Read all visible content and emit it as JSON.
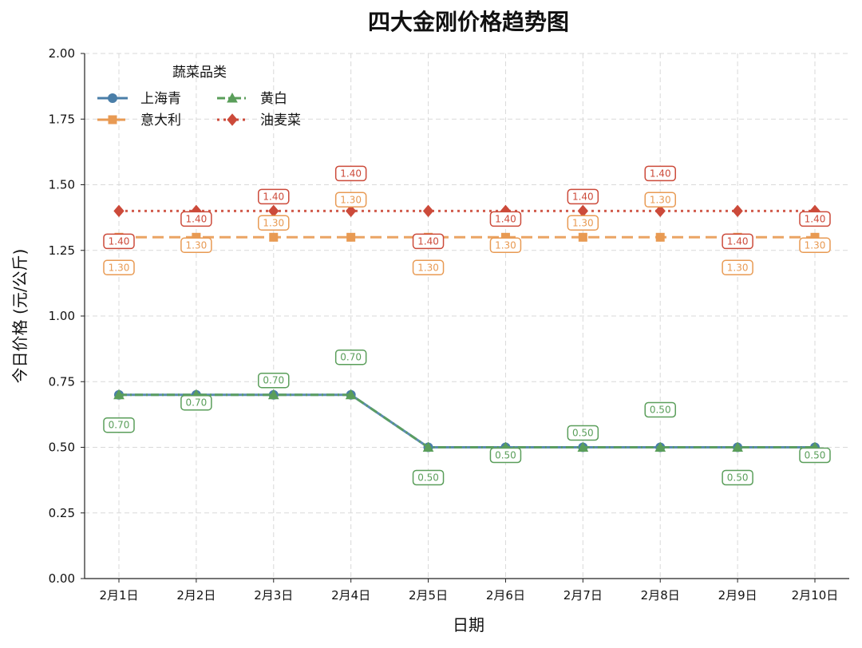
{
  "chart_data": {
    "type": "line",
    "title": "四大金刚价格趋势图",
    "xlabel": "日期",
    "ylabel": "今日价格 (元/公斤)",
    "categories": [
      "2月1日",
      "2月2日",
      "2月3日",
      "2月4日",
      "2月5日",
      "2月6日",
      "2月7日",
      "2月8日",
      "2月9日",
      "2月10日"
    ],
    "y_ticks": [
      "0.00",
      "0.25",
      "0.50",
      "0.75",
      "1.00",
      "1.25",
      "1.50",
      "1.75",
      "2.00"
    ],
    "ylim": [
      0,
      2.0
    ],
    "grid": true,
    "legend": {
      "title": "蔬菜品类",
      "placement": "top-left"
    },
    "series": [
      {
        "name": "上海青",
        "color": "#4a7ea8",
        "marker": "circle",
        "line_style": "solid",
        "values": [
          0.7,
          0.7,
          0.7,
          0.7,
          0.5,
          0.5,
          0.5,
          0.5,
          0.5,
          0.5
        ],
        "labels": [
          "0.70",
          "0.70",
          "0.70",
          "0.70",
          "0.50",
          "0.50",
          "0.50",
          "0.50",
          "0.50",
          "0.50"
        ]
      },
      {
        "name": "意大利",
        "color": "#e89a53",
        "marker": "square",
        "line_style": "dashed",
        "values": [
          1.3,
          1.3,
          1.3,
          1.3,
          1.3,
          1.3,
          1.3,
          1.3,
          1.3,
          1.3
        ],
        "labels": [
          "1.30",
          "1.30",
          "1.30",
          "1.30",
          "1.30",
          "1.30",
          "1.30",
          "1.30",
          "1.30",
          "1.30"
        ]
      },
      {
        "name": "黄白",
        "color": "#5a9e5a",
        "marker": "triangle",
        "line_style": "dashdot",
        "values": [
          0.7,
          0.7,
          0.7,
          0.7,
          0.5,
          0.5,
          0.5,
          0.5,
          0.5,
          0.5
        ],
        "labels": [
          "0.70",
          "0.70",
          "0.70",
          "0.70",
          "0.50",
          "0.50",
          "0.50",
          "0.50",
          "0.50",
          "0.50"
        ]
      },
      {
        "name": "油麦菜",
        "color": "#cc4a3a",
        "marker": "diamond",
        "line_style": "dotted",
        "values": [
          1.4,
          1.4,
          1.4,
          1.4,
          1.4,
          1.4,
          1.4,
          1.4,
          1.4,
          1.4
        ],
        "labels": [
          "1.40",
          "1.40",
          "1.40",
          "1.40",
          "1.40",
          "1.40",
          "1.40",
          "1.40",
          "1.40",
          "1.40"
        ]
      }
    ]
  }
}
